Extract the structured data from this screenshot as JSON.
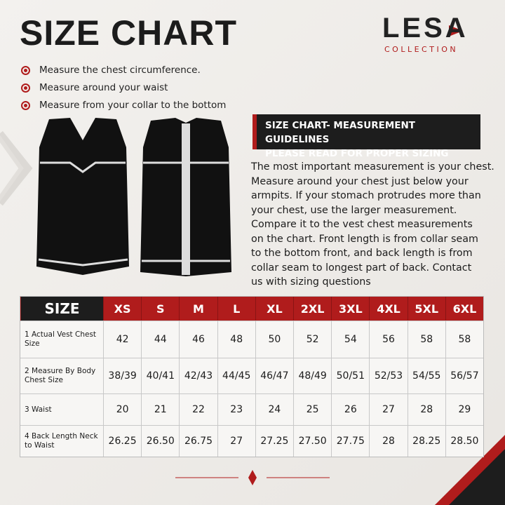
{
  "header": {
    "title": "SIZE CHART",
    "logo": {
      "brand": "LESA",
      "tagline": "COLLECTION"
    }
  },
  "bullets": [
    "Measure the chest circumference.",
    "Measure around your waist",
    "Measure from your collar to the bottom"
  ],
  "guidelines": {
    "heading": [
      "SIZE CHART- MEASUREMENT GUIDELINES",
      "PLEASE READ FOR PROPER SIZING"
    ],
    "text": [
      "The most important measurement is your chest.",
      "Measure around your chest just below your",
      "armpits. If your stomach protrudes more than",
      "your chest, use the larger measurement.",
      "Compare it to the vest chest measurements",
      "on the chart. Front length is from collar seam",
      "to the bottom front, and back length is from",
      "collar seam to longest part of back. Contact",
      "us with sizing questions"
    ]
  },
  "table": {
    "header": [
      "SIZE",
      "XS",
      "S",
      "M",
      "L",
      "XL",
      "2XL",
      "3XL",
      "4XL",
      "5XL",
      "6XL"
    ],
    "rows": [
      [
        "1 Actual Vest Chest Size",
        "42",
        "44",
        "46",
        "48",
        "50",
        "52",
        "54",
        "56",
        "58",
        "58"
      ],
      [
        "2 Measure By Body Chest Size",
        "38/39",
        "40/41",
        "42/43",
        "44/45",
        "46/47",
        "48/49",
        "50/51",
        "52/53",
        "54/55",
        "56/57"
      ],
      [
        "3 Waist",
        "20",
        "21",
        "22",
        "23",
        "24",
        "25",
        "26",
        "27",
        "28",
        "29"
      ],
      [
        "4 Back Length Neck to Waist",
        "26.25",
        "26.50",
        "26.75",
        "27",
        "27.25",
        "27.50",
        "27.75",
        "28",
        "28.25",
        "28.50"
      ]
    ]
  }
}
